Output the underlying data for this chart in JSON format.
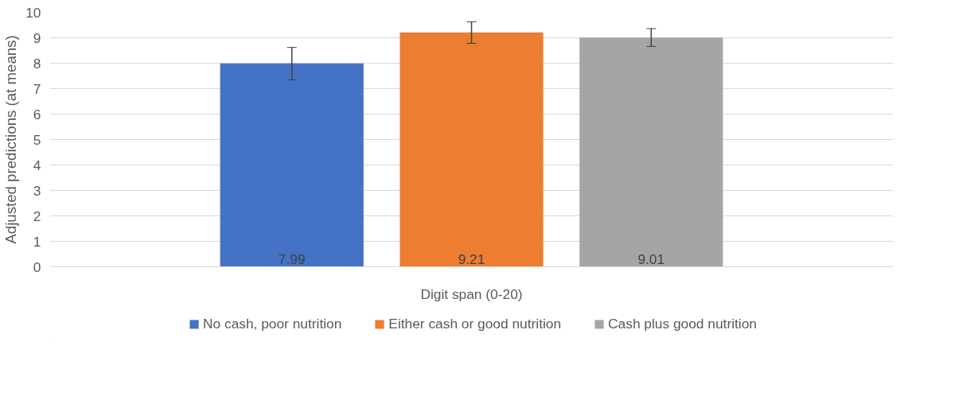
{
  "chart_data": {
    "type": "bar",
    "ylabel": "Adjusted predictions (at means)",
    "categories": [
      "Digit span (0-20)"
    ],
    "series": [
      {
        "name": "No cash, poor nutrition",
        "color": "#4472c4",
        "values": [
          7.99
        ],
        "errors": [
          [
            7.35,
            8.62
          ]
        ]
      },
      {
        "name": "Either cash or good nutrition",
        "color": "#ed7d31",
        "values": [
          9.21
        ],
        "errors": [
          [
            8.78,
            9.63
          ]
        ]
      },
      {
        "name": "Cash plus good nutrition",
        "color": "#a5a5a5",
        "values": [
          9.01
        ],
        "errors": [
          [
            8.66,
            9.36
          ]
        ]
      }
    ],
    "ylim": [
      0,
      10
    ],
    "yticks": [
      0,
      1,
      2,
      3,
      4,
      5,
      6,
      7,
      8,
      9,
      10
    ],
    "grid": "y",
    "legend": "bottom",
    "data_labels": true
  }
}
